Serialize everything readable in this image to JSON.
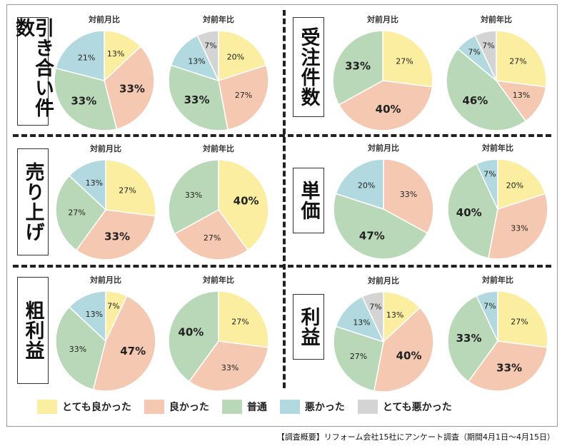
{
  "legend": [
    {
      "label": "とても良かった",
      "color": "#fbeea0"
    },
    {
      "label": "良かった",
      "color": "#f5c8b1"
    },
    {
      "label": "普通",
      "color": "#b9d8b7"
    },
    {
      "label": "悪かった",
      "color": "#b2d9df"
    },
    {
      "label": "とても悪かった",
      "color": "#d4d4d4"
    }
  ],
  "source_note": "【調査概要】リフォーム会社15社にアンケート調査（期間4月1日〜4月15日）",
  "panels": [
    {
      "category": "引き合い件数"
    },
    {
      "category": "受注件数"
    },
    {
      "category": "売り上げ"
    },
    {
      "category": "単価"
    },
    {
      "category": "粗利益"
    },
    {
      "category": "利益"
    }
  ],
  "chart_data": [
    {
      "type": "pie",
      "category": "引き合い件数",
      "title": "対前月比",
      "labels": [
        "とても良かった",
        "良かった",
        "普通",
        "悪かった",
        "とても悪かった"
      ],
      "values": [
        13,
        33,
        33,
        21,
        0
      ]
    },
    {
      "type": "pie",
      "category": "引き合い件数",
      "title": "対前年比",
      "labels": [
        "とても良かった",
        "良かった",
        "普通",
        "悪かった",
        "とても悪かった"
      ],
      "values": [
        20,
        27,
        33,
        13,
        7
      ]
    },
    {
      "type": "pie",
      "category": "受注件数",
      "title": "対前月比",
      "labels": [
        "とても良かった",
        "良かった",
        "普通",
        "悪かった",
        "とても悪かった"
      ],
      "values": [
        27,
        40,
        33,
        0,
        0
      ]
    },
    {
      "type": "pie",
      "category": "受注件数",
      "title": "対前年比",
      "labels": [
        "とても良かった",
        "良かった",
        "普通",
        "悪かった",
        "とても悪かった"
      ],
      "values": [
        27,
        13,
        46,
        7,
        7
      ]
    },
    {
      "type": "pie",
      "category": "売り上げ",
      "title": "対前月比",
      "labels": [
        "とても良かった",
        "良かった",
        "普通",
        "悪かった",
        "とても悪かった"
      ],
      "values": [
        27,
        33,
        27,
        13,
        0
      ]
    },
    {
      "type": "pie",
      "category": "売り上げ",
      "title": "対前年比",
      "labels": [
        "とても良かった",
        "良かった",
        "普通",
        "悪かった",
        "とても悪かった"
      ],
      "values": [
        40,
        27,
        33,
        0,
        0
      ]
    },
    {
      "type": "pie",
      "category": "単価",
      "title": "対前月比",
      "labels": [
        "とても良かった",
        "良かった",
        "普通",
        "悪かった",
        "とても悪かった"
      ],
      "values": [
        0,
        33,
        47,
        20,
        0
      ]
    },
    {
      "type": "pie",
      "category": "単価",
      "title": "対前年比",
      "labels": [
        "とても良かった",
        "良かった",
        "普通",
        "悪かった",
        "とても悪かった"
      ],
      "values": [
        20,
        33,
        40,
        7,
        0
      ]
    },
    {
      "type": "pie",
      "category": "粗利益",
      "title": "対前月比",
      "labels": [
        "とても良かった",
        "良かった",
        "普通",
        "悪かった",
        "とても悪かった"
      ],
      "values": [
        7,
        47,
        33,
        13,
        0
      ]
    },
    {
      "type": "pie",
      "category": "粗利益",
      "title": "対前年比",
      "labels": [
        "とても良かった",
        "良かった",
        "普通",
        "悪かった",
        "とても悪かった"
      ],
      "values": [
        27,
        33,
        40,
        0,
        0
      ]
    },
    {
      "type": "pie",
      "category": "利益",
      "title": "対前月比",
      "labels": [
        "とても良かった",
        "良かった",
        "普通",
        "悪かった",
        "とても悪かった"
      ],
      "values": [
        13,
        40,
        27,
        13,
        7
      ]
    },
    {
      "type": "pie",
      "category": "利益",
      "title": "対前年比",
      "labels": [
        "とても良かった",
        "良かった",
        "普通",
        "悪かった",
        "とても悪かった"
      ],
      "values": [
        27,
        33,
        33,
        7,
        0
      ]
    }
  ]
}
